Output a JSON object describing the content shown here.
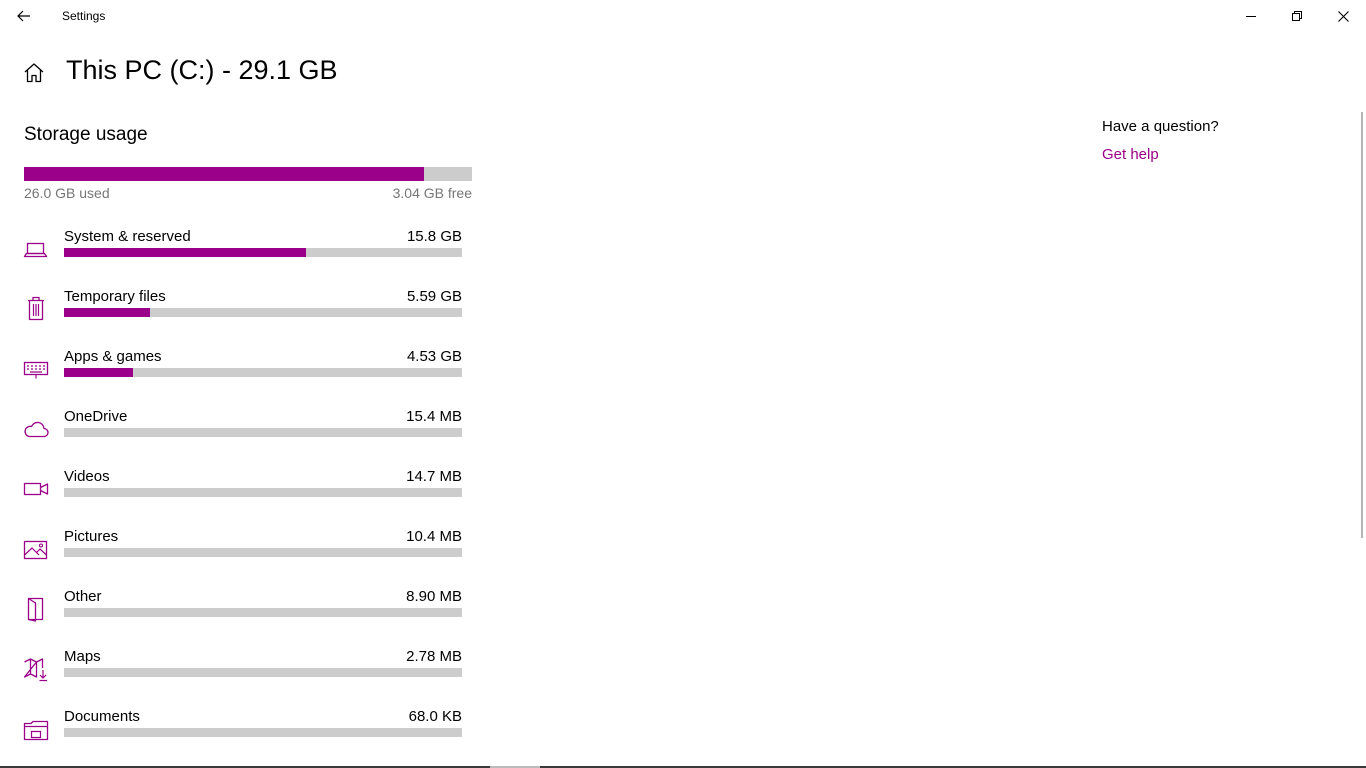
{
  "window": {
    "title": "Settings"
  },
  "header": {
    "title": "This PC (C:) - 29.1 GB"
  },
  "storage": {
    "section_title": "Storage usage",
    "used_label": "26.0 GB used",
    "free_label": "3.04 GB free",
    "used_fraction": 0.893
  },
  "categories": [
    {
      "name": "System & reserved",
      "size": "15.8 GB",
      "fraction": 0.608,
      "icon": "laptop-icon"
    },
    {
      "name": "Temporary files",
      "size": "5.59 GB",
      "fraction": 0.215,
      "icon": "trash-icon"
    },
    {
      "name": "Apps & games",
      "size": "4.53 GB",
      "fraction": 0.174,
      "icon": "keyboard-icon"
    },
    {
      "name": "OneDrive",
      "size": "15.4 MB",
      "fraction": 0,
      "icon": "cloud-icon"
    },
    {
      "name": "Videos",
      "size": "14.7 MB",
      "fraction": 0,
      "icon": "video-camera-icon"
    },
    {
      "name": "Pictures",
      "size": "10.4 MB",
      "fraction": 0,
      "icon": "picture-icon"
    },
    {
      "name": "Other",
      "size": "8.90 MB",
      "fraction": 0,
      "icon": "other-files-icon"
    },
    {
      "name": "Maps",
      "size": "2.78 MB",
      "fraction": 0,
      "icon": "map-download-icon"
    },
    {
      "name": "Documents",
      "size": "68.0 KB",
      "fraction": 0,
      "icon": "folder-icon"
    }
  ],
  "help": {
    "question": "Have a question?",
    "link": "Get help"
  },
  "colors": {
    "accent": "#9a0089",
    "track": "#cccccc"
  }
}
